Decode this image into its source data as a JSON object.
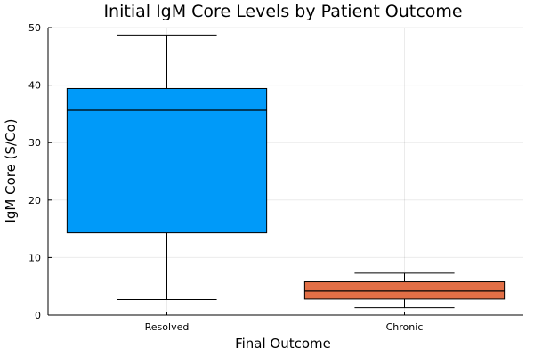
{
  "chart_data": {
    "type": "box",
    "title": "Initial IgM Core Levels by Patient Outcome",
    "xlabel": "Final Outcome",
    "ylabel": "IgM Core (S/Co)",
    "ylim": [
      0,
      50
    ],
    "yticks": [
      0,
      10,
      20,
      30,
      40,
      50
    ],
    "grid": true,
    "legend": "none",
    "categories": [
      "Resolved",
      "Chronic"
    ],
    "boxes": [
      {
        "category": "Resolved",
        "min": 2.7,
        "q1": 14.3,
        "median": 35.6,
        "q3": 39.4,
        "max": 48.7,
        "color": "#009af9"
      },
      {
        "category": "Chronic",
        "min": 1.3,
        "q1": 2.8,
        "median": 4.2,
        "q3": 5.8,
        "max": 7.3,
        "color": "#e26f46"
      }
    ]
  }
}
